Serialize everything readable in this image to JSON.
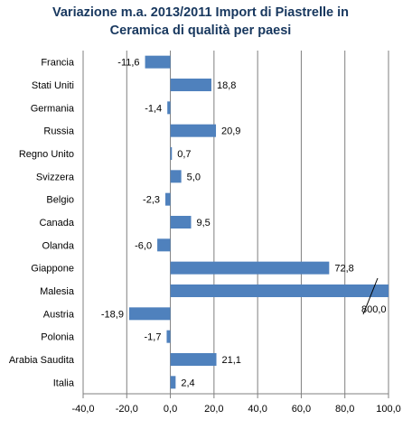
{
  "chart_data": {
    "type": "bar",
    "orientation": "horizontal",
    "title_lines": [
      "Variazione m.a. 2013/2011 Import di Piastrelle in",
      "Ceramica di qualità per paesi"
    ],
    "categories": [
      "Francia",
      "Stati Uniti",
      "Germania",
      "Russia",
      "Regno Unito",
      "Svizzera",
      "Belgio",
      "Canada",
      "Olanda",
      "Giappone",
      "Malesia",
      "Austria",
      "Polonia",
      "Arabia Saudita",
      "Italia"
    ],
    "values": [
      -11.6,
      18.8,
      -1.4,
      20.9,
      0.7,
      5.0,
      -2.3,
      9.5,
      -6.0,
      72.8,
      800.0,
      -18.9,
      -1.7,
      21.1,
      2.4
    ],
    "value_labels": [
      "-11,6",
      "18,8",
      "-1,4",
      "20,9",
      "0,7",
      "5,0",
      "-2,3",
      "9,5",
      "-6,0",
      "72,8",
      "800,0",
      "-18,9",
      "-1,7",
      "21,1",
      "2,4"
    ],
    "xlim": [
      -40,
      100
    ],
    "x_ticks": [
      -40,
      -20,
      0,
      20,
      40,
      60,
      80,
      100
    ],
    "x_tick_labels": [
      "-40,0",
      "-20,0",
      "0,0",
      "20,0",
      "40,0",
      "60,0",
      "80,0",
      "100,0"
    ],
    "bar_color": "#4F81BD",
    "grid": true,
    "clipped_category": "Malesia"
  }
}
